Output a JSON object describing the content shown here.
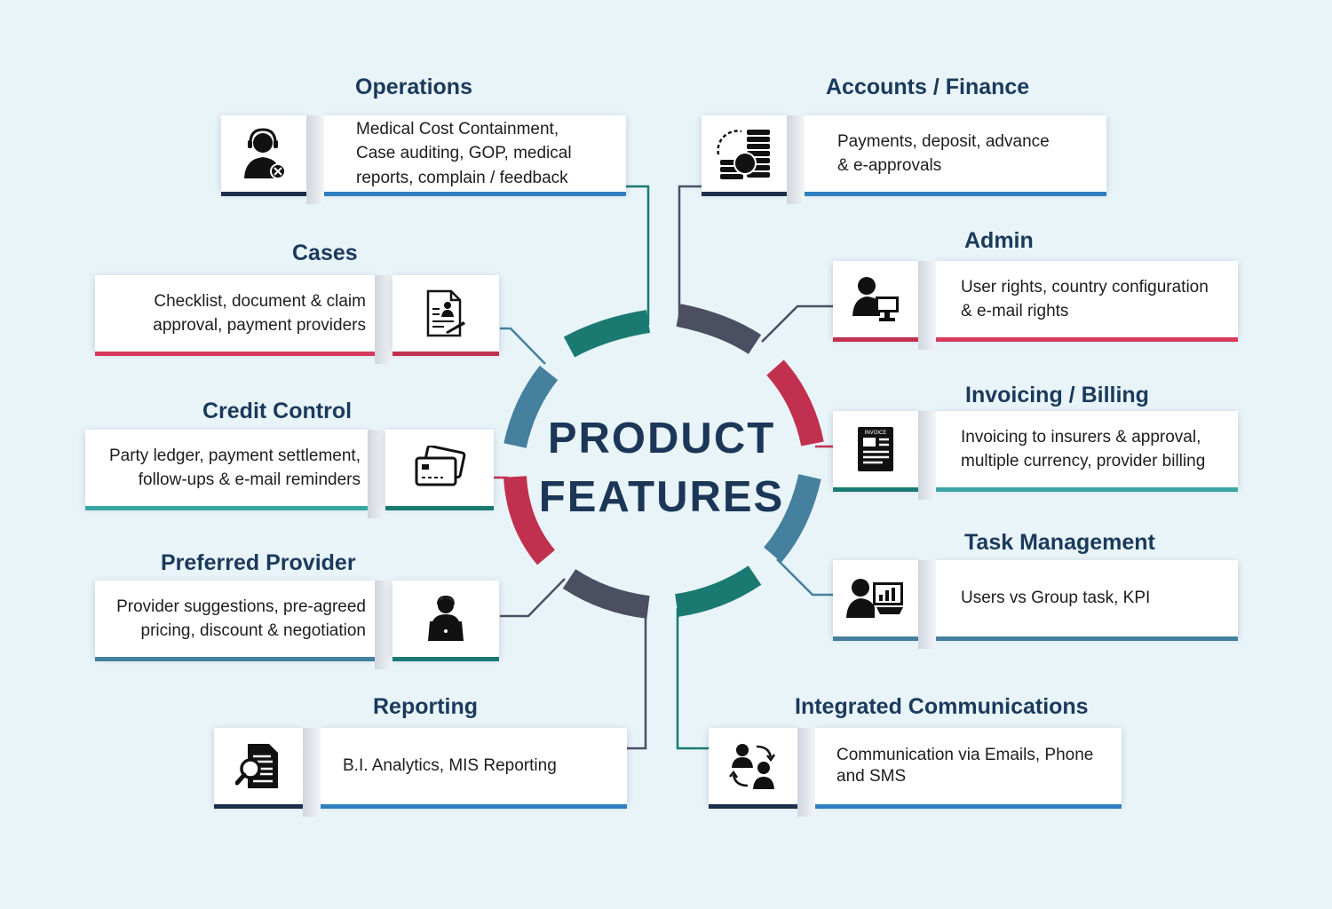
{
  "center": {
    "line1": "PRODUCT",
    "line2": "FEATURES"
  },
  "colors": {
    "navy": "#1a3a5c",
    "teal": "#1a7a72",
    "slate": "#4c4f62",
    "crimson": "#c2304f",
    "steel": "#45809e",
    "aqua": "#3aa6a4"
  },
  "features": [
    {
      "id": "operations",
      "title": "Operations",
      "icon": "operator-headset-icon",
      "accent": "#2f7fc0",
      "lines": [
        "Medical Cost Containment,",
        "Case auditing, GOP, medical",
        "reports, complain / feedback"
      ]
    },
    {
      "id": "cases",
      "title": "Cases",
      "icon": "claim-document-icon",
      "accent": "#d8385a",
      "lines": [
        "Checklist, document & claim",
        "approval, payment providers"
      ]
    },
    {
      "id": "credit-control",
      "title": "Credit Control",
      "icon": "credit-cards-icon",
      "accent": "#3aa6a4",
      "lines": [
        "Party ledger, payment settlement,",
        "follow-ups & e-mail reminders"
      ]
    },
    {
      "id": "preferred-provider",
      "title": "Preferred Provider",
      "icon": "person-laptop-icon",
      "accent": "#45809e",
      "lines": [
        "Provider suggestions, pre-agreed",
        "pricing, discount & negotiation"
      ]
    },
    {
      "id": "reporting",
      "title": "Reporting",
      "icon": "report-search-icon",
      "accent": "#2f7fc0",
      "lines": [
        "B.I. Analytics, MIS Reporting"
      ]
    },
    {
      "id": "accounts-finance",
      "title": "Accounts / Finance",
      "icon": "coins-stack-icon",
      "accent": "#2f7fc0",
      "lines": [
        "Payments, deposit, advance",
        "& e-approvals"
      ]
    },
    {
      "id": "admin",
      "title": "Admin",
      "icon": "admin-computer-icon",
      "accent": "#d8385a",
      "lines": [
        "User rights, country configuration",
        "& e-mail rights"
      ]
    },
    {
      "id": "invoicing-billing",
      "title": "Invoicing / Billing",
      "icon": "invoice-icon",
      "accent": "#3aa6a4",
      "icon_label": "INVOICE",
      "lines": [
        "Invoicing to insurers & approval,",
        "multiple currency, provider billing"
      ]
    },
    {
      "id": "task-management",
      "title": "Task Management",
      "icon": "user-dashboard-icon",
      "accent": "#45809e",
      "lines": [
        "Users vs Group task, KPI"
      ]
    },
    {
      "id": "integrated-communications",
      "title": "Integrated Communications",
      "icon": "people-exchange-icon",
      "accent": "#2f7fc0",
      "lines": [
        "Communication via Emails, Phone",
        "and SMS"
      ]
    }
  ]
}
